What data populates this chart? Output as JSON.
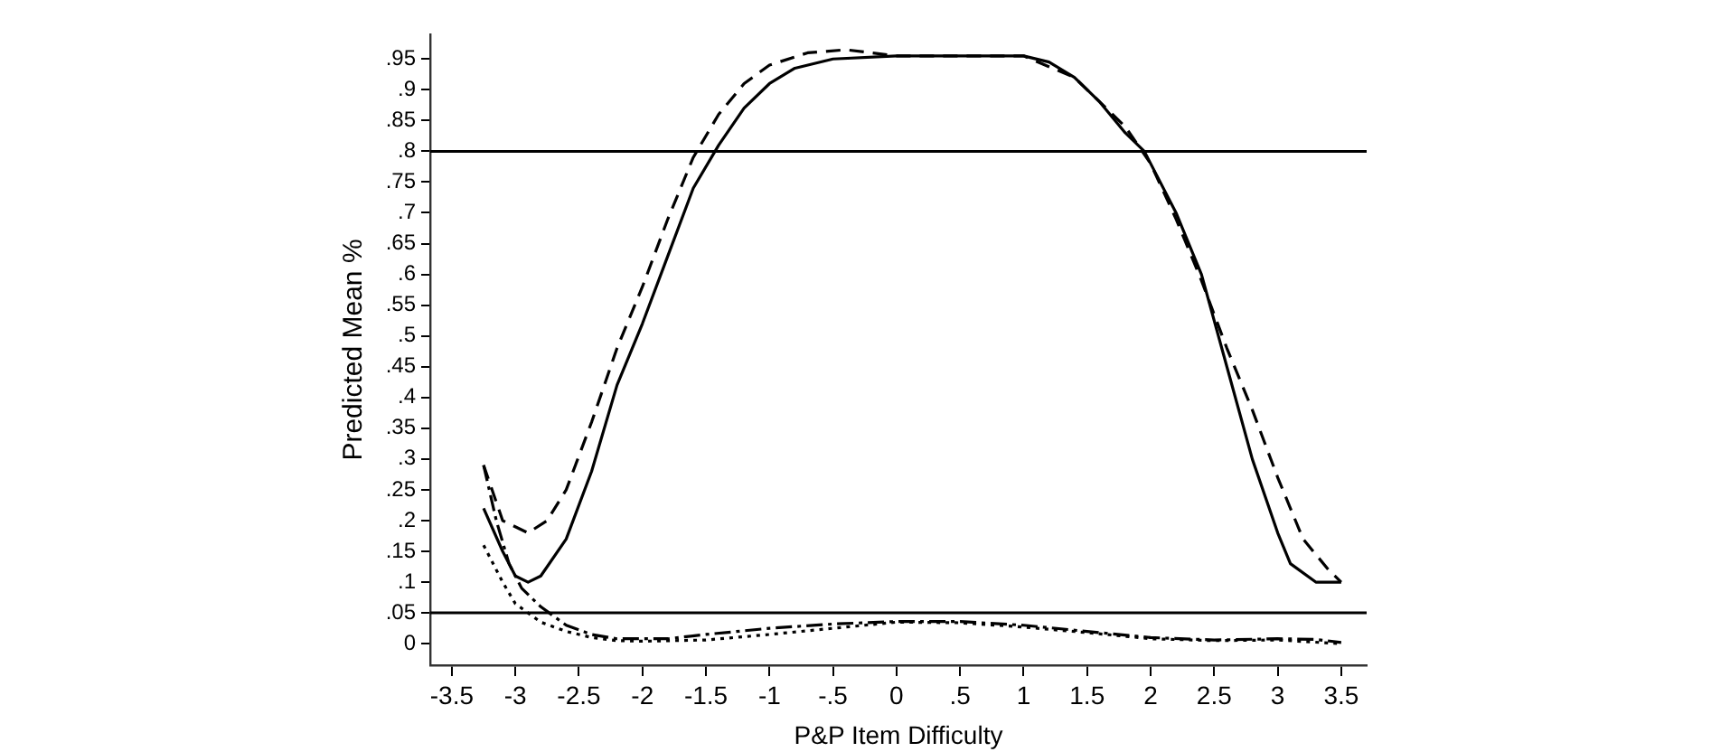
{
  "chart_data": {
    "type": "line",
    "xlabel": "P&P Item Difficulty",
    "ylabel": "Predicted Mean %",
    "xlim": [
      -3.67,
      3.7
    ],
    "ylim": [
      -0.035,
      0.99
    ],
    "xticks": [
      -3.5,
      -3,
      -2.5,
      -2,
      -1.5,
      -1,
      {
        "value": -0.5,
        "label": "-.5"
      },
      0,
      {
        "value": 0.5,
        "label": ".5"
      },
      1,
      1.5,
      2,
      2.5,
      3,
      3.5
    ],
    "yticks": [
      0,
      {
        "value": 0.05,
        "label": ".05"
      },
      {
        "value": 0.1,
        "label": ".1"
      },
      {
        "value": 0.15,
        "label": ".15"
      },
      {
        "value": 0.2,
        "label": ".2"
      },
      {
        "value": 0.25,
        "label": ".25"
      },
      {
        "value": 0.3,
        "label": ".3"
      },
      {
        "value": 0.35,
        "label": ".35"
      },
      {
        "value": 0.4,
        "label": ".4"
      },
      {
        "value": 0.45,
        "label": ".45"
      },
      {
        "value": 0.5,
        "label": ".5"
      },
      {
        "value": 0.55,
        "label": ".55"
      },
      {
        "value": 0.6,
        "label": ".6"
      },
      {
        "value": 0.65,
        "label": ".65"
      },
      {
        "value": 0.7,
        "label": ".7"
      },
      {
        "value": 0.75,
        "label": ".75"
      },
      {
        "value": 0.8,
        "label": ".8"
      },
      {
        "value": 0.85,
        "label": ".85"
      },
      {
        "value": 0.9,
        "label": ".9"
      },
      {
        "value": 0.95,
        "label": ".95"
      }
    ],
    "grid": false,
    "legend": false,
    "marker": "none",
    "ref_lines": [
      {
        "axis": "y",
        "value": 0.8,
        "color": "#000000"
      },
      {
        "axis": "y",
        "value": 0.05,
        "color": "#000000"
      }
    ],
    "series": [
      {
        "color": "#000000",
        "line_style": "solid",
        "x": [
          -3.25,
          -3.1,
          -3,
          -2.9,
          -2.8,
          -2.6,
          -2.4,
          -2.2,
          -2,
          -1.8,
          -1.6,
          -1.4,
          -1.2,
          -1,
          -0.8,
          -0.5,
          0,
          0.5,
          1,
          1.2,
          1.4,
          1.6,
          1.8,
          1.95,
          2.2,
          2.4,
          2.6,
          2.8,
          3,
          3.1,
          3.3,
          3.5
        ],
        "values": [
          0.22,
          0.15,
          0.11,
          0.1,
          0.11,
          0.17,
          0.28,
          0.42,
          0.52,
          0.63,
          0.74,
          0.81,
          0.87,
          0.91,
          0.935,
          0.95,
          0.955,
          0.955,
          0.955,
          0.945,
          0.92,
          0.88,
          0.83,
          0.8,
          0.7,
          0.6,
          0.45,
          0.3,
          0.18,
          0.13,
          0.1,
          0.1
        ]
      },
      {
        "color": "#000000",
        "line_style": "dashed",
        "x": [
          -3.25,
          -3.1,
          -2.9,
          -2.75,
          -2.6,
          -2.4,
          -2.2,
          -2,
          -1.8,
          -1.6,
          -1.4,
          -1.2,
          -1,
          -0.7,
          -0.4,
          0,
          0.5,
          1,
          1.4,
          1.8,
          2,
          2.2,
          2.4,
          2.6,
          2.8,
          3,
          3.2,
          3.4,
          3.5
        ],
        "values": [
          0.29,
          0.2,
          0.18,
          0.2,
          0.25,
          0.36,
          0.48,
          0.58,
          0.69,
          0.79,
          0.86,
          0.91,
          0.94,
          0.96,
          0.965,
          0.955,
          0.955,
          0.955,
          0.92,
          0.84,
          0.78,
          0.69,
          0.59,
          0.48,
          0.38,
          0.27,
          0.17,
          0.12,
          0.1
        ]
      },
      {
        "color": "#000000",
        "line_style": "dashdot",
        "x": [
          -3.25,
          -3.15,
          -3.05,
          -2.95,
          -2.8,
          -2.6,
          -2.4,
          -2.2,
          -2,
          -1.8,
          -1.5,
          -1,
          -0.5,
          0,
          0.5,
          1,
          1.5,
          2,
          2.5,
          3,
          3.3,
          3.5
        ],
        "values": [
          0.29,
          0.2,
          0.13,
          0.09,
          0.06,
          0.03,
          0.015,
          0.008,
          0.008,
          0.008,
          0.015,
          0.025,
          0.032,
          0.036,
          0.036,
          0.03,
          0.02,
          0.01,
          0.006,
          0.008,
          0.007,
          0.002
        ]
      },
      {
        "color": "#000000",
        "line_style": "dotted",
        "x": [
          -3.25,
          -3.1,
          -3,
          -2.8,
          -2.6,
          -2.4,
          -2.2,
          -2,
          -1.5,
          -1,
          -0.5,
          0,
          0.5,
          1,
          1.5,
          2,
          2.5,
          3,
          3.5
        ],
        "values": [
          0.16,
          0.1,
          0.065,
          0.035,
          0.02,
          0.01,
          0.005,
          0.004,
          0.006,
          0.015,
          0.025,
          0.035,
          0.034,
          0.027,
          0.018,
          0.008,
          0.005,
          0.006,
          0
        ]
      }
    ]
  }
}
